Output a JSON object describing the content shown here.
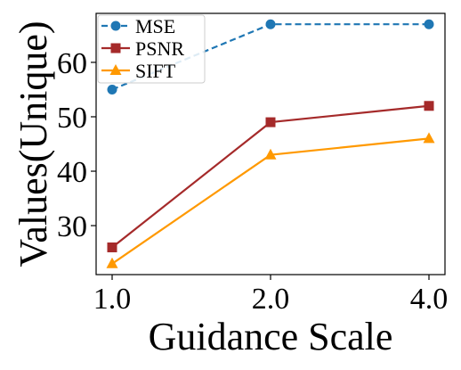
{
  "chart_data": {
    "type": "line",
    "categories": [
      "1.0",
      "2.0",
      "4.0"
    ],
    "xlabel": "Guidance Scale",
    "ylabel": "Values(Unique)",
    "ylim": [
      21,
      69
    ],
    "yticks": [
      30,
      40,
      50,
      60
    ],
    "grid": false,
    "legend_position": "top-left",
    "series": [
      {
        "name": "MSE",
        "values": [
          55,
          67,
          67
        ],
        "color": "#1f77b4",
        "marker": "circle",
        "line_style": "dashed"
      },
      {
        "name": "PSNR",
        "values": [
          26,
          49,
          52
        ],
        "color": "#a52a2a",
        "marker": "square",
        "line_style": "solid"
      },
      {
        "name": "SIFT",
        "values": [
          23,
          43,
          46
        ],
        "color": "#ff9900",
        "marker": "triangle",
        "line_style": "solid"
      }
    ]
  }
}
